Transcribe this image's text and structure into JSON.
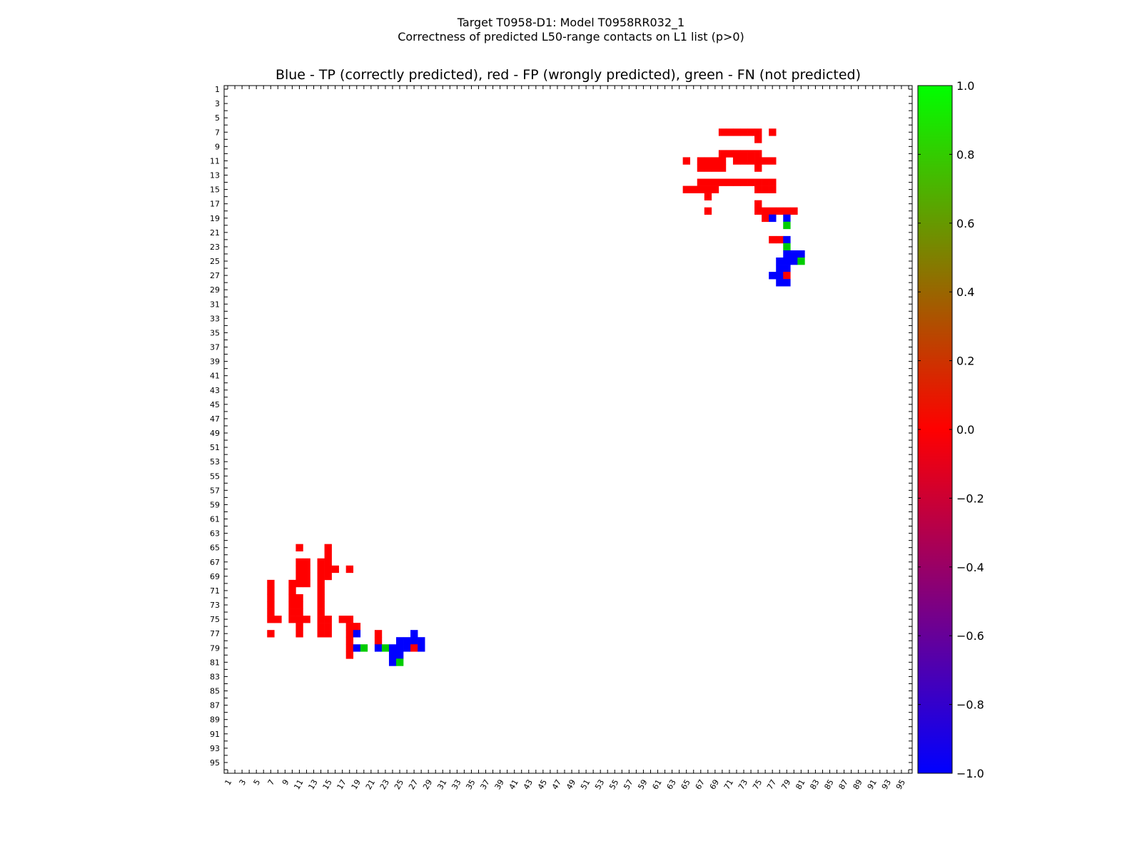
{
  "chart_data": {
    "type": "heatmap",
    "title": "Target T0958-D1: Model T0958RR032_1",
    "subtitle": "Correctness of predicted L50-range contacts on L1 list (p>0)",
    "plot_title": "Blue - TP (correctly predicted), red - FP (wrongly predicted), green - FN (not predicted)",
    "n_residues": 96,
    "symmetric": true,
    "value_meaning": {
      "-1": "TP",
      "0": "FP",
      "1": "FN"
    },
    "colors": {
      "TP": "#0000ff",
      "FP": "#ff0000",
      "FN": "#00cc00",
      "cbar_top": "#00ff00",
      "cbar_mid": "#ff0000",
      "cbar_bottom": "#0000ff"
    },
    "cell_runs_row_colstart_colend_value": [
      [
        7,
        70,
        75,
        0
      ],
      [
        7,
        77,
        77,
        0
      ],
      [
        8,
        75,
        75,
        0
      ],
      [
        10,
        70,
        75,
        0
      ],
      [
        11,
        65,
        65,
        0
      ],
      [
        11,
        67,
        70,
        0
      ],
      [
        11,
        72,
        77,
        0
      ],
      [
        12,
        67,
        70,
        0
      ],
      [
        12,
        75,
        75,
        0
      ],
      [
        14,
        67,
        77,
        0
      ],
      [
        15,
        65,
        69,
        0
      ],
      [
        15,
        75,
        77,
        0
      ],
      [
        16,
        68,
        68,
        0
      ],
      [
        17,
        75,
        75,
        0
      ],
      [
        18,
        68,
        68,
        0
      ],
      [
        18,
        75,
        80,
        0
      ],
      [
        19,
        76,
        76,
        0
      ],
      [
        19,
        77,
        77,
        -1
      ],
      [
        19,
        79,
        79,
        -1
      ],
      [
        20,
        79,
        79,
        1
      ],
      [
        22,
        77,
        78,
        0
      ],
      [
        22,
        79,
        79,
        -1
      ],
      [
        23,
        79,
        79,
        1
      ],
      [
        24,
        79,
        81,
        -1
      ],
      [
        25,
        78,
        80,
        -1
      ],
      [
        25,
        81,
        81,
        1
      ],
      [
        26,
        78,
        79,
        -1
      ],
      [
        27,
        77,
        78,
        -1
      ],
      [
        27,
        79,
        79,
        0
      ],
      [
        28,
        78,
        79,
        -1
      ]
    ],
    "x_tick_labels": [
      "1",
      "3",
      "5",
      "7",
      "9",
      "11",
      "13",
      "15",
      "17",
      "19",
      "21",
      "23",
      "25",
      "27",
      "29",
      "31",
      "33",
      "35",
      "37",
      "39",
      "41",
      "43",
      "45",
      "47",
      "49",
      "51",
      "53",
      "55",
      "57",
      "59",
      "61",
      "63",
      "65",
      "67",
      "69",
      "71",
      "73",
      "75",
      "77",
      "79",
      "81",
      "83",
      "85",
      "87",
      "89",
      "91",
      "93",
      "95"
    ],
    "y_tick_labels": [
      "1",
      "3",
      "5",
      "7",
      "9",
      "11",
      "13",
      "15",
      "17",
      "19",
      "21",
      "23",
      "25",
      "27",
      "29",
      "31",
      "33",
      "35",
      "37",
      "39",
      "41",
      "43",
      "45",
      "47",
      "49",
      "51",
      "53",
      "55",
      "57",
      "59",
      "61",
      "63",
      "65",
      "67",
      "69",
      "71",
      "73",
      "75",
      "77",
      "79",
      "81",
      "83",
      "85",
      "87",
      "89",
      "91",
      "93",
      "95"
    ],
    "colorbar": {
      "range": [
        -1.0,
        1.0
      ],
      "tick_labels": [
        "1.0",
        "0.8",
        "0.6",
        "0.4",
        "0.2",
        "0.0",
        "−0.2",
        "−0.4",
        "−0.6",
        "−0.8",
        "−1.0"
      ],
      "tick_values": [
        1.0,
        0.8,
        0.6,
        0.4,
        0.2,
        0.0,
        -0.2,
        -0.4,
        -0.6,
        -0.8,
        -1.0
      ]
    }
  }
}
